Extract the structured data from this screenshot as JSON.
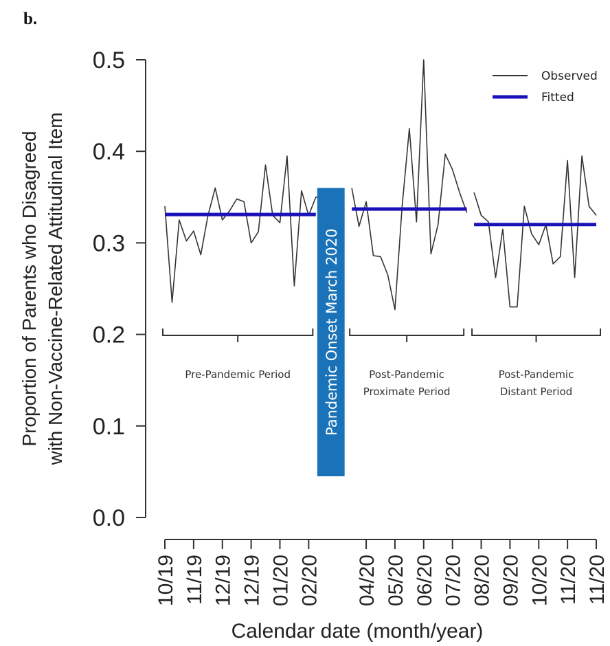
{
  "panel_label": "b.",
  "chart_data": {
    "type": "line",
    "ylabel_line1": "Proportion of Parents who Disagreed",
    "ylabel_line2": "with Non-Vaccine-Related Attitudinal Item",
    "xlabel": "Calendar date (month/year)",
    "ylim": [
      0,
      0.5
    ],
    "yticks": [
      0.0,
      0.1,
      0.2,
      0.3,
      0.4,
      0.5
    ],
    "ytick_labels": [
      "0.0",
      "0.1",
      "0.2",
      "0.3",
      "0.4",
      "0.5"
    ],
    "grid": false,
    "legend": {
      "placement": "top-right",
      "entries": [
        {
          "label": "Observed",
          "color": "#333333"
        },
        {
          "label": "Fitted",
          "color": "#1a12b8"
        }
      ]
    },
    "xticks": [
      {
        "label": "10/19",
        "x": 0
      },
      {
        "label": "11/19",
        "x": 4
      },
      {
        "label": "12/19",
        "x": 8
      },
      {
        "label": "12/19",
        "x": 12
      },
      {
        "label": "01/20",
        "x": 16
      },
      {
        "label": "02/20",
        "x": 20
      },
      {
        "label": "04/20",
        "x": 28
      },
      {
        "label": "05/20",
        "x": 32
      },
      {
        "label": "06/20",
        "x": 36
      },
      {
        "label": "07/20",
        "x": 40
      },
      {
        "label": "08/20",
        "x": 44
      },
      {
        "label": "09/20",
        "x": 48
      },
      {
        "label": "10/20",
        "x": 52
      },
      {
        "label": "11/20",
        "x": 56
      },
      {
        "label": "11/20",
        "x": 60
      }
    ],
    "series": [
      {
        "name": "Observed",
        "segments": [
          {
            "x": [
              0,
              1,
              2,
              3,
              4,
              5,
              6,
              7,
              8,
              9,
              10,
              11,
              12,
              13,
              14,
              15,
              16,
              17,
              18,
              19,
              20,
              21,
              22
            ],
            "y": [
              0.34,
              0.235,
              0.325,
              0.302,
              0.313,
              0.287,
              0.33,
              0.36,
              0.325,
              0.335,
              0.348,
              0.345,
              0.3,
              0.312,
              0.385,
              0.33,
              0.322,
              0.395,
              0.253,
              0.357,
              0.33,
              0.35,
              0.35
            ]
          },
          {
            "x": [
              26,
              27,
              28,
              29,
              30,
              31,
              32,
              33,
              34,
              35,
              36,
              37,
              38,
              39,
              40,
              41,
              42
            ],
            "y": [
              0.36,
              0.318,
              0.345,
              0.286,
              0.285,
              0.265,
              0.227,
              0.34,
              0.425,
              0.323,
              0.5,
              0.288,
              0.32,
              0.397,
              0.38,
              0.355,
              0.333
            ]
          },
          {
            "x": [
              43,
              44,
              45,
              46,
              47,
              48,
              49,
              50,
              51,
              52,
              53,
              54,
              55,
              56,
              57,
              58,
              59,
              60
            ],
            "y": [
              0.355,
              0.33,
              0.323,
              0.262,
              0.315,
              0.23,
              0.23,
              0.34,
              0.31,
              0.298,
              0.32,
              0.277,
              0.285,
              0.39,
              0.262,
              0.395,
              0.34,
              0.33
            ]
          }
        ]
      },
      {
        "name": "Fitted",
        "segments": [
          {
            "x": [
              0,
              21
            ],
            "y": [
              0.331,
              0.331
            ]
          },
          {
            "x": [
              26,
              42
            ],
            "y": [
              0.337,
              0.337
            ]
          },
          {
            "x": [
              43,
              60
            ],
            "y": [
              0.32,
              0.32
            ]
          }
        ]
      }
    ],
    "periods": [
      {
        "line1": "Pre-Pandemic Period",
        "line2": "",
        "x_start": 0,
        "x_end": 20
      },
      {
        "line1": "Post-Pandemic",
        "line2": "Proximate Period",
        "x_start": 26,
        "x_end": 41
      },
      {
        "line1": "Post-Pandemic",
        "line2": "Distant Period",
        "x_start": 43,
        "x_end": 60
      }
    ],
    "annotation": {
      "text": "Pandemic Onset March 2020",
      "color": "#1a73b8",
      "x_start": 21.2,
      "x_end": 25.0,
      "y_top": 0.36,
      "y_bottom": 0.045
    }
  }
}
